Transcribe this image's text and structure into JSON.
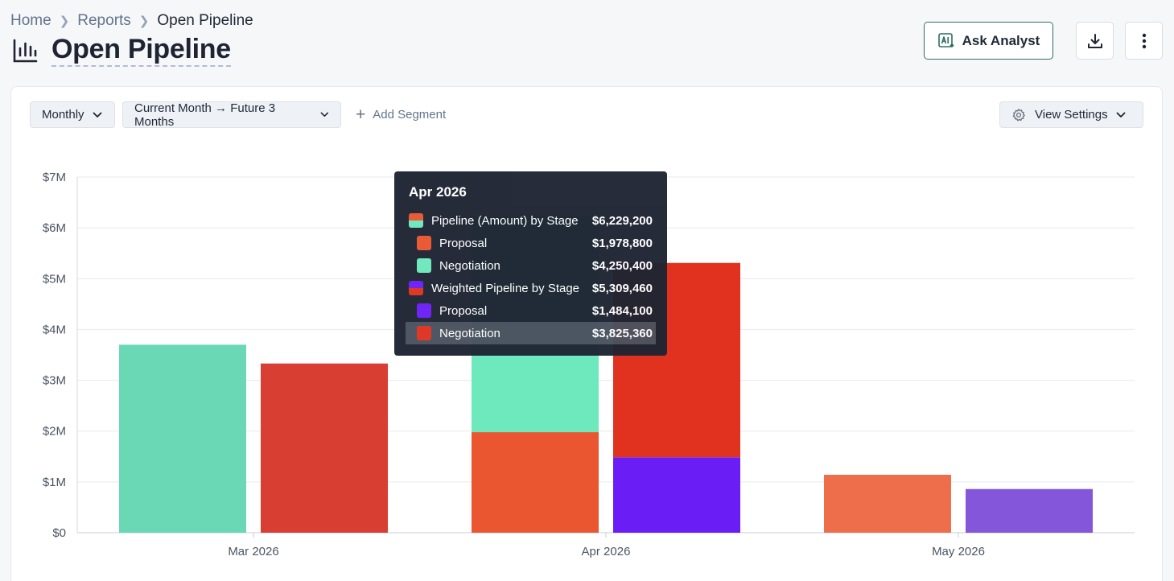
{
  "breadcrumb": {
    "home": "Home",
    "reports": "Reports",
    "current": "Open Pipeline"
  },
  "header": {
    "title": "Open Pipeline",
    "ask_label": "Ask Analyst",
    "ask_icon": "ai-icon",
    "download_icon": "download-icon",
    "more_icon": "more-vertical-icon"
  },
  "toolbar": {
    "period": "Monthly",
    "range": "Current Month → Future 3 Months",
    "add_segment": "Add Segment",
    "view_settings": "View Settings"
  },
  "tooltip": {
    "title": "Apr 2026",
    "rows": [
      {
        "label": "Pipeline (Amount) by Stage",
        "value": "$6,229,200"
      },
      {
        "label": "Proposal",
        "value": "$1,978,800"
      },
      {
        "label": "Negotiation",
        "value": "$4,250,400"
      },
      {
        "label": "Weighted Pipeline by Stage",
        "value": "$5,309,460"
      },
      {
        "label": "Proposal",
        "value": "$1,484,100"
      },
      {
        "label": "Negotiation",
        "value": "$3,825,360"
      }
    ]
  },
  "colors": {
    "pipeline_proposal": "#e95630",
    "pipeline_negotiation": "#6ee8bd",
    "weighted_proposal": "#6a1ef5",
    "weighted_negotiation": "#e0321f",
    "muted_pipeline_negotiation": "#6ad7b5",
    "muted_weighted_negotiation": "#d83e32",
    "muted_pipeline_proposal": "#ee6d4a",
    "muted_weighted_proposal": "#8456d9"
  },
  "chart_data": {
    "type": "bar",
    "stacked": true,
    "title": "Open Pipeline",
    "xlabel": "",
    "ylabel": "",
    "ylim": [
      0,
      7000000
    ],
    "y_ticks": [
      "$0",
      "$1M",
      "$2M",
      "$3M",
      "$4M",
      "$5M",
      "$6M",
      "$7M"
    ],
    "categories": [
      "Mar 2026",
      "Apr 2026",
      "May 2026"
    ],
    "groups": [
      {
        "name": "Pipeline (Amount) by Stage",
        "series": [
          {
            "name": "Proposal",
            "values": [
              0,
              1978800,
              1140000
            ]
          },
          {
            "name": "Negotiation",
            "values": [
              3700000,
              4250400,
              0
            ]
          }
        ]
      },
      {
        "name": "Weighted Pipeline by Stage",
        "series": [
          {
            "name": "Proposal",
            "values": [
              0,
              1484100,
              860000
            ]
          },
          {
            "name": "Negotiation",
            "values": [
              3330000,
              3825360,
              0
            ]
          }
        ]
      }
    ],
    "active_category": "Apr 2026",
    "tooltip_highlight": "Weighted Pipeline by Stage / Negotiation"
  }
}
